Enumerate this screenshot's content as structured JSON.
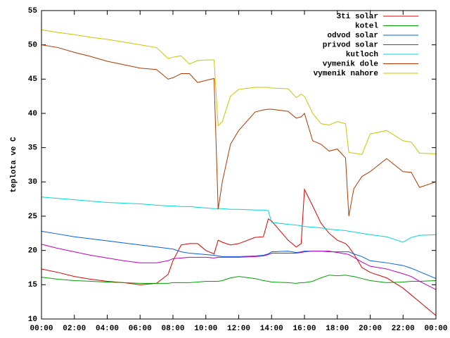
{
  "chart_data": {
    "type": "line",
    "y_label": "teplota ve C",
    "x": [
      0,
      1,
      2,
      3,
      4,
      5,
      6,
      7,
      7.7,
      8,
      8.5,
      9,
      9.5,
      10,
      10.5,
      10.75,
      11,
      11.5,
      12,
      13,
      13.5,
      13.8,
      14,
      15,
      15.5,
      15.8,
      16,
      16.5,
      17,
      17.5,
      18,
      18.5,
      18.7,
      19,
      19.5,
      20,
      21,
      22,
      22.5,
      23,
      24
    ],
    "xlim": [
      0,
      24
    ],
    "xticks": [
      {
        "value": 0,
        "label": "00:00"
      },
      {
        "value": 2,
        "label": "02:00"
      },
      {
        "value": 4,
        "label": "04:00"
      },
      {
        "value": 6,
        "label": "06:00"
      },
      {
        "value": 8,
        "label": "08:00"
      },
      {
        "value": 10,
        "label": "10:00"
      },
      {
        "value": 12,
        "label": "12:00"
      },
      {
        "value": 14,
        "label": "14:00"
      },
      {
        "value": 16,
        "label": "16:00"
      },
      {
        "value": 18,
        "label": "18:00"
      },
      {
        "value": 20,
        "label": "20:00"
      },
      {
        "value": 22,
        "label": "22:00"
      },
      {
        "value": 24,
        "label": "00:00"
      }
    ],
    "ylim": [
      10,
      55
    ],
    "yticks": [
      10,
      15,
      20,
      25,
      30,
      35,
      40,
      45,
      50,
      55
    ],
    "legend": "top-right",
    "series": [
      {
        "name": "3ti solar",
        "color": "#e00000",
        "values": [
          17.3,
          16.8,
          16.2,
          15.8,
          15.5,
          15.3,
          15.0,
          15.2,
          16.5,
          18.5,
          20.8,
          21.0,
          21.0,
          20.0,
          19.5,
          21.5,
          21.2,
          20.8,
          21.0,
          21.9,
          22.0,
          24.6,
          24.3,
          21.5,
          20.5,
          21.0,
          28.9,
          26.5,
          24.0,
          22.5,
          21.5,
          21.0,
          20.5,
          19.5,
          17.5,
          16.8,
          16.0,
          14.5,
          13.5,
          12.5,
          10.5
        ]
      },
      {
        "name": "kotel",
        "color": "#00a000",
        "values": [
          16.1,
          15.8,
          15.6,
          15.5,
          15.4,
          15.3,
          15.2,
          15.2,
          15.2,
          15.3,
          15.3,
          15.3,
          15.4,
          15.5,
          15.5,
          15.5,
          15.6,
          16.0,
          16.2,
          15.9,
          15.6,
          15.5,
          15.4,
          15.3,
          15.2,
          15.3,
          15.3,
          15.5,
          16.0,
          16.4,
          16.3,
          16.4,
          16.3,
          16.2,
          15.9,
          15.6,
          15.3,
          15.4,
          15.5,
          15.5,
          15.6
        ]
      },
      {
        "name": "odvod solar",
        "color": "#0060e0",
        "values": [
          22.8,
          22.4,
          22.0,
          21.7,
          21.4,
          21.1,
          20.8,
          20.5,
          20.3,
          20.2,
          19.8,
          19.6,
          19.5,
          19.4,
          19.3,
          19.2,
          19.1,
          19.1,
          19.1,
          19.2,
          19.3,
          19.5,
          19.8,
          19.9,
          19.7,
          19.8,
          19.9,
          19.9,
          19.9,
          19.8,
          19.8,
          19.8,
          19.8,
          19.5,
          19.1,
          18.5,
          18.2,
          17.8,
          17.4,
          16.9,
          15.9
        ]
      },
      {
        "name": "privod solar",
        "color": "#c000c0",
        "values": [
          20.9,
          20.3,
          19.8,
          19.3,
          18.9,
          18.5,
          18.2,
          18.2,
          18.5,
          18.8,
          18.9,
          19.0,
          19.0,
          19.0,
          18.9,
          19.0,
          19.0,
          19.0,
          19.0,
          19.1,
          19.2,
          19.4,
          19.6,
          19.6,
          19.6,
          19.7,
          19.8,
          19.9,
          19.9,
          19.9,
          19.7,
          19.5,
          19.4,
          19.0,
          18.3,
          17.7,
          17.3,
          16.6,
          16.2,
          15.5,
          14.3
        ]
      },
      {
        "name": "kutloch",
        "color": "#00d8d8",
        "values": [
          27.8,
          27.6,
          27.4,
          27.2,
          27.0,
          26.9,
          26.8,
          26.6,
          26.5,
          26.5,
          26.4,
          26.4,
          26.3,
          26.2,
          26.1,
          26.1,
          26.1,
          26.0,
          26.0,
          25.9,
          25.9,
          25.8,
          24.1,
          23.8,
          23.7,
          23.6,
          23.5,
          23.4,
          23.3,
          23.1,
          23.0,
          22.9,
          22.8,
          22.7,
          22.5,
          22.3,
          22.0,
          21.2,
          21.9,
          22.2,
          22.3
        ]
      },
      {
        "name": "vymenik dole",
        "color": "#b03800",
        "values": [
          50.0,
          49.6,
          48.9,
          48.3,
          47.6,
          47.1,
          46.6,
          46.4,
          45.0,
          45.2,
          45.8,
          45.8,
          44.5,
          44.8,
          45.1,
          26.0,
          30.0,
          35.5,
          37.5,
          40.2,
          40.5,
          40.6,
          40.6,
          40.3,
          39.3,
          39.5,
          40.0,
          36.0,
          35.5,
          34.5,
          34.8,
          33.5,
          25.0,
          29.0,
          30.8,
          31.5,
          33.4,
          31.5,
          31.4,
          29.2,
          30.0
        ]
      },
      {
        "name": "vymenik nahore",
        "color": "#c8c800",
        "values": [
          52.2,
          51.8,
          51.5,
          51.1,
          50.8,
          50.4,
          50.0,
          49.6,
          48.0,
          48.2,
          48.4,
          47.2,
          47.7,
          47.8,
          47.8,
          38.2,
          38.8,
          42.5,
          43.5,
          43.8,
          43.8,
          43.8,
          43.7,
          43.6,
          42.3,
          42.8,
          42.5,
          40.0,
          38.5,
          38.3,
          38.8,
          38.5,
          34.3,
          34.2,
          34.0,
          37.0,
          37.5,
          36.0,
          35.8,
          34.2,
          34.1
        ]
      }
    ]
  }
}
